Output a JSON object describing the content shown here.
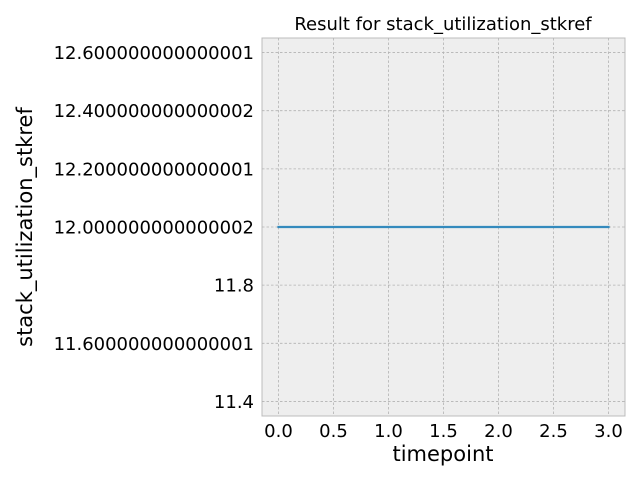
{
  "chart_data": {
    "type": "line",
    "title": "Result for stack_utilization_stkref",
    "xlabel": "timepoint",
    "ylabel": "stack_utilization_stkref",
    "x": [
      0.0,
      1.0,
      2.0,
      3.0
    ],
    "series": [
      {
        "values": [
          12.000000000000002,
          12.000000000000002,
          12.000000000000002,
          12.000000000000002
        ],
        "color": "#348ABD"
      }
    ],
    "xlim": [
      -0.15,
      3.15
    ],
    "ylim": [
      11.35,
      12.65
    ],
    "xticks": [
      {
        "value": 0.0,
        "label": "0.0"
      },
      {
        "value": 0.5,
        "label": "0.5"
      },
      {
        "value": 1.0,
        "label": "1.0"
      },
      {
        "value": 1.5,
        "label": "1.5"
      },
      {
        "value": 2.0,
        "label": "2.0"
      },
      {
        "value": 2.5,
        "label": "2.5"
      },
      {
        "value": 3.0,
        "label": "3.0"
      }
    ],
    "yticks": [
      {
        "value": 11.4,
        "label": "11.4"
      },
      {
        "value": 11.6,
        "label": "11.600000000000001"
      },
      {
        "value": 11.8,
        "label": "11.8"
      },
      {
        "value": 12.0,
        "label": "12.000000000000002"
      },
      {
        "value": 12.2,
        "label": "12.200000000000001"
      },
      {
        "value": 12.4,
        "label": "12.400000000000002"
      },
      {
        "value": 12.6,
        "label": "12.600000000000001"
      }
    ],
    "grid": true,
    "style": "bmh",
    "colors": {
      "plot_background": "#EEEEEE",
      "grid": "#B2B2B2",
      "spine": "#BCBCBC"
    }
  }
}
